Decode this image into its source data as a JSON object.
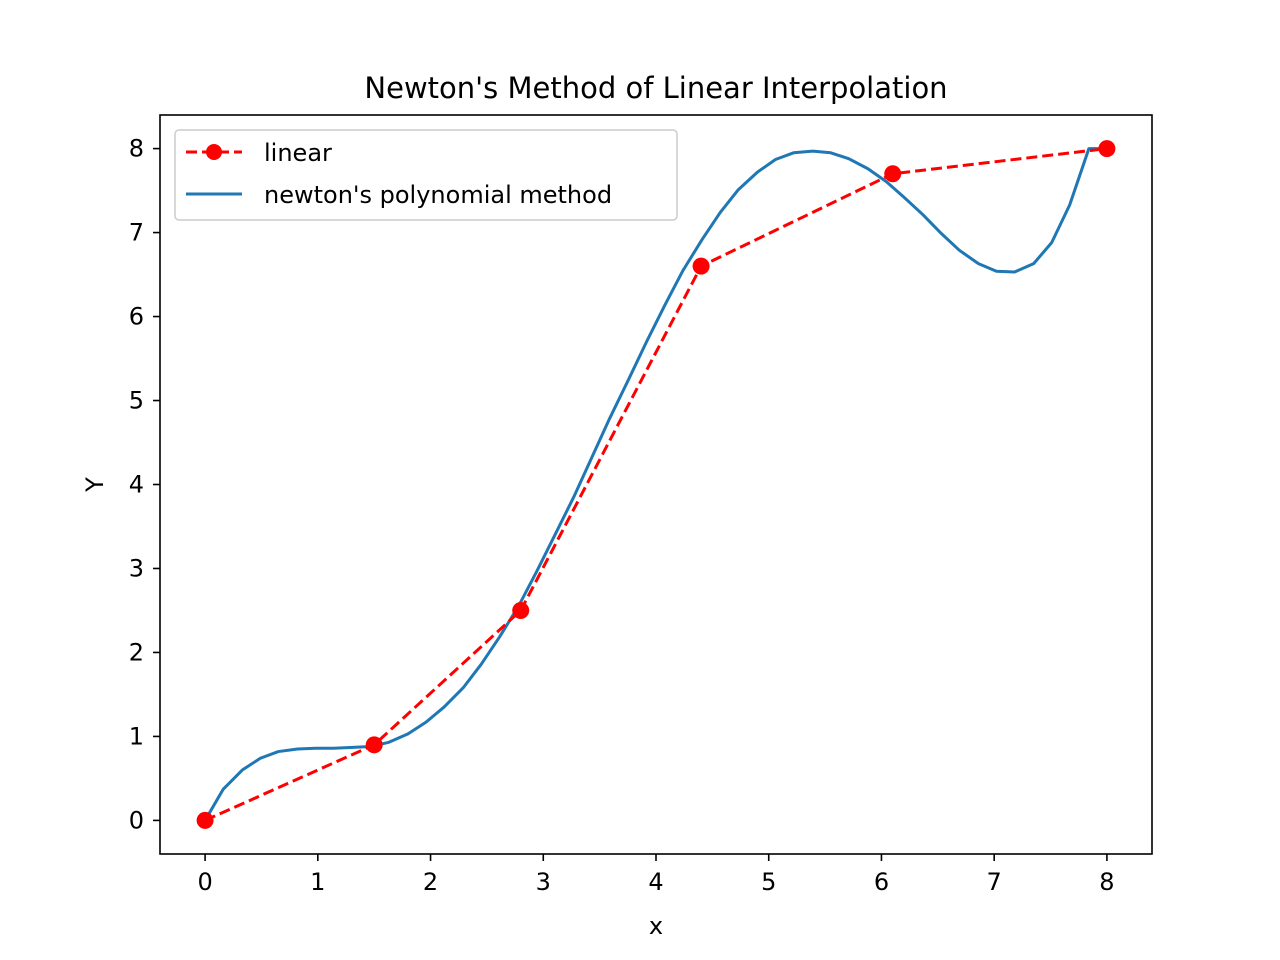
{
  "chart_data": {
    "type": "line",
    "title": "Newton's Method of Linear Interpolation",
    "xlabel": "x",
    "ylabel": "Y",
    "xlim": [
      -0.4,
      8.4
    ],
    "ylim": [
      -0.4,
      8.4
    ],
    "x_ticks": [
      0,
      1,
      2,
      3,
      4,
      5,
      6,
      7,
      8
    ],
    "y_ticks": [
      0,
      1,
      2,
      3,
      4,
      5,
      6,
      7,
      8
    ],
    "grid": false,
    "legend_position": "upper-left",
    "series": [
      {
        "name": "linear",
        "style": "dashed-with-markers",
        "color": "#ff0000",
        "x": [
          0,
          1.5,
          2.8,
          4.4,
          6.1,
          8.0
        ],
        "y": [
          0,
          0.9,
          2.5,
          6.6,
          7.7,
          8.0
        ]
      },
      {
        "name": "newton's polynomial method",
        "style": "solid",
        "color": "#1f77b4",
        "x": [
          0,
          0.16,
          0.33,
          0.49,
          0.65,
          0.82,
          0.98,
          1.14,
          1.31,
          1.47,
          1.63,
          1.8,
          1.96,
          2.12,
          2.29,
          2.45,
          2.61,
          2.78,
          2.94,
          3.1,
          3.27,
          3.43,
          3.59,
          3.76,
          3.92,
          4.08,
          4.24,
          4.41,
          4.57,
          4.73,
          4.9,
          5.06,
          5.22,
          5.39,
          5.55,
          5.71,
          5.88,
          6.04,
          6.2,
          6.37,
          6.53,
          6.69,
          6.86,
          7.02,
          7.18,
          7.35,
          7.51,
          7.67,
          7.84,
          8.0
        ],
        "y": [
          0,
          0.37,
          0.6,
          0.74,
          0.82,
          0.85,
          0.86,
          0.86,
          0.87,
          0.88,
          0.93,
          1.03,
          1.17,
          1.35,
          1.58,
          1.86,
          2.18,
          2.55,
          2.96,
          3.39,
          3.85,
          4.32,
          4.79,
          5.26,
          5.71,
          6.14,
          6.55,
          6.92,
          7.24,
          7.51,
          7.72,
          7.87,
          7.95,
          7.97,
          7.95,
          7.88,
          7.76,
          7.61,
          7.42,
          7.21,
          6.99,
          6.79,
          6.63,
          6.54,
          6.53,
          6.63,
          6.88,
          7.33,
          8.0,
          8.0
        ]
      }
    ]
  }
}
